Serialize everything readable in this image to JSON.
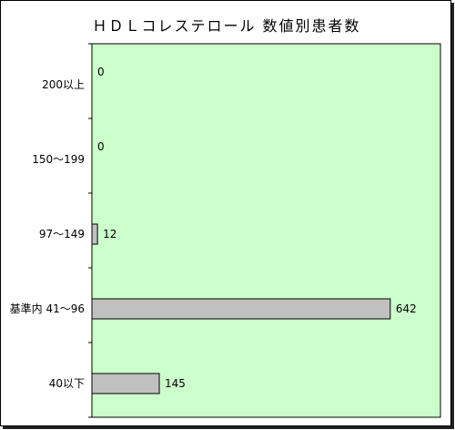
{
  "chart_data": {
    "type": "bar",
    "orientation": "horizontal",
    "title": "ＨＤＬコレステロール 数値別患者数",
    "categories": [
      "200以上",
      "150～199",
      "97～149",
      "基準内 41～96",
      "40以下"
    ],
    "values": [
      0,
      0,
      12,
      642,
      145
    ],
    "xlim": [
      0,
      750
    ],
    "grid": false,
    "colors": {
      "plot_background": "#ccffcc",
      "bar_fill": "#c0c0c0",
      "bar_stroke": "#000000"
    }
  }
}
